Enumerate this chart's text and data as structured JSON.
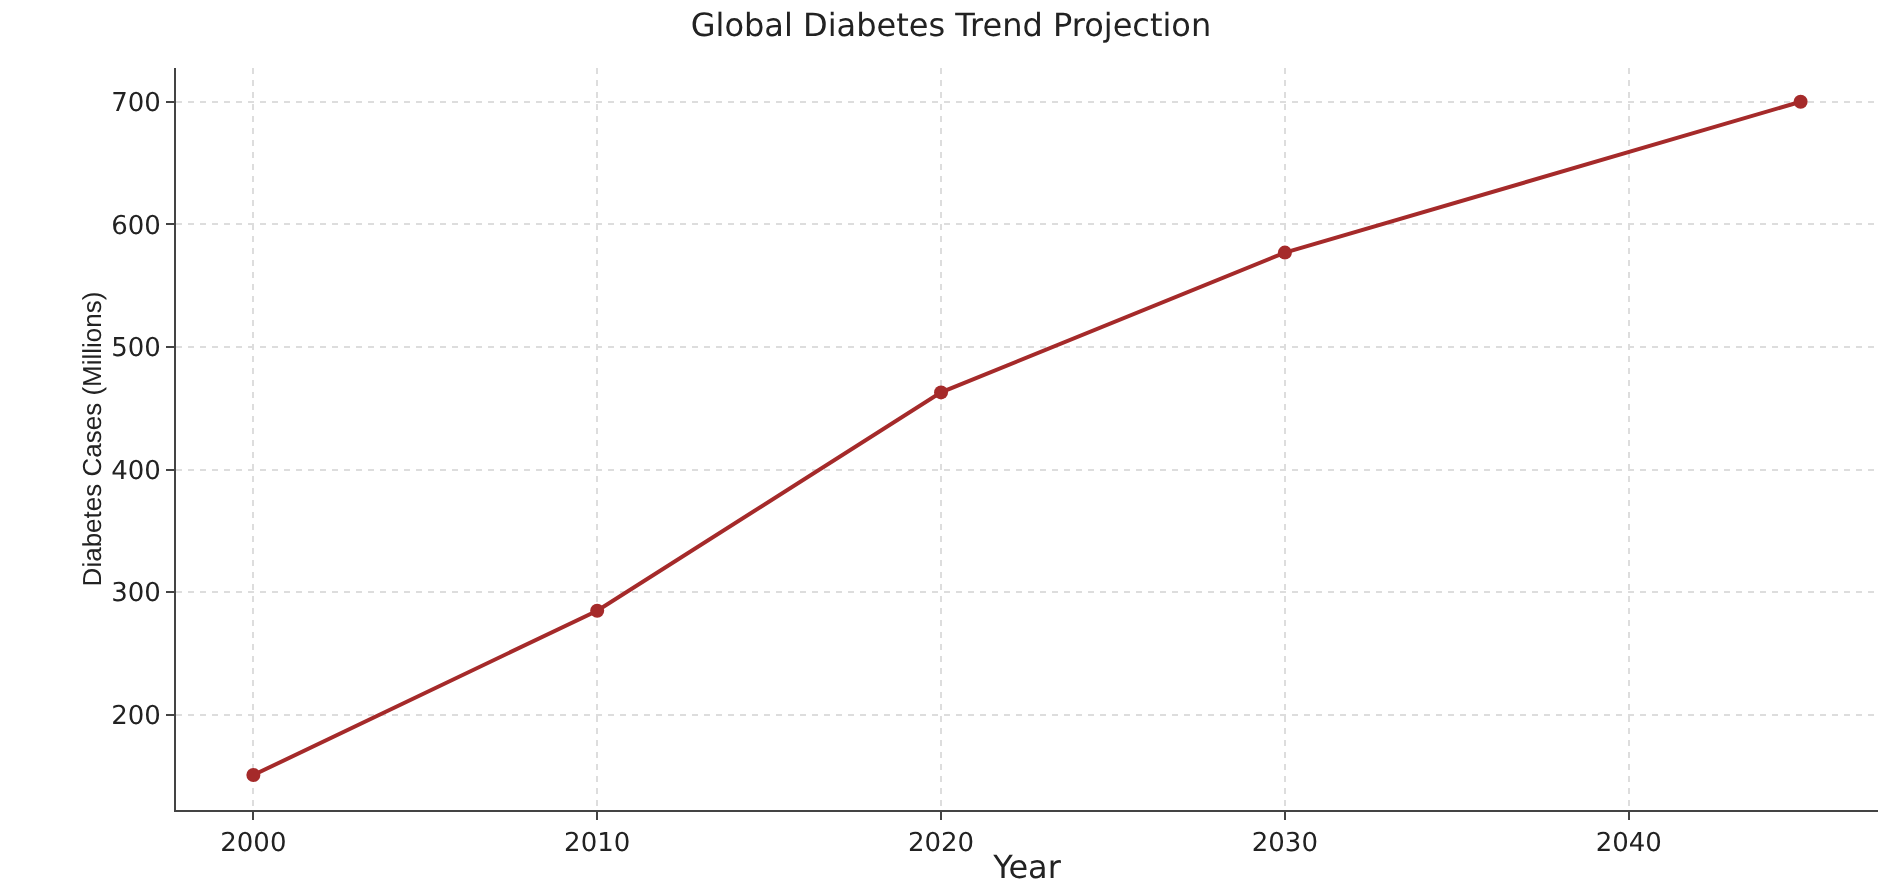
{
  "chart_data": {
    "type": "line",
    "title": "Global Diabetes Trend Projection",
    "xlabel": "Year",
    "ylabel": "Diabetes Cases (Millions)",
    "x": [
      2000,
      2010,
      2020,
      2030,
      2045
    ],
    "series": [
      {
        "color": "#a52a2a",
        "values": [
          151,
          285,
          463,
          577,
          700
        ]
      }
    ],
    "xlim": [
      1997.75,
      2047.25
    ],
    "xticks": [
      2000,
      2010,
      2020,
      2030,
      2040
    ],
    "ylim": [
      122.5,
      727.5
    ],
    "yticks": [
      200,
      300,
      400,
      500,
      600,
      700
    ],
    "grid": true,
    "marker": "circle",
    "line_style": "solid"
  }
}
